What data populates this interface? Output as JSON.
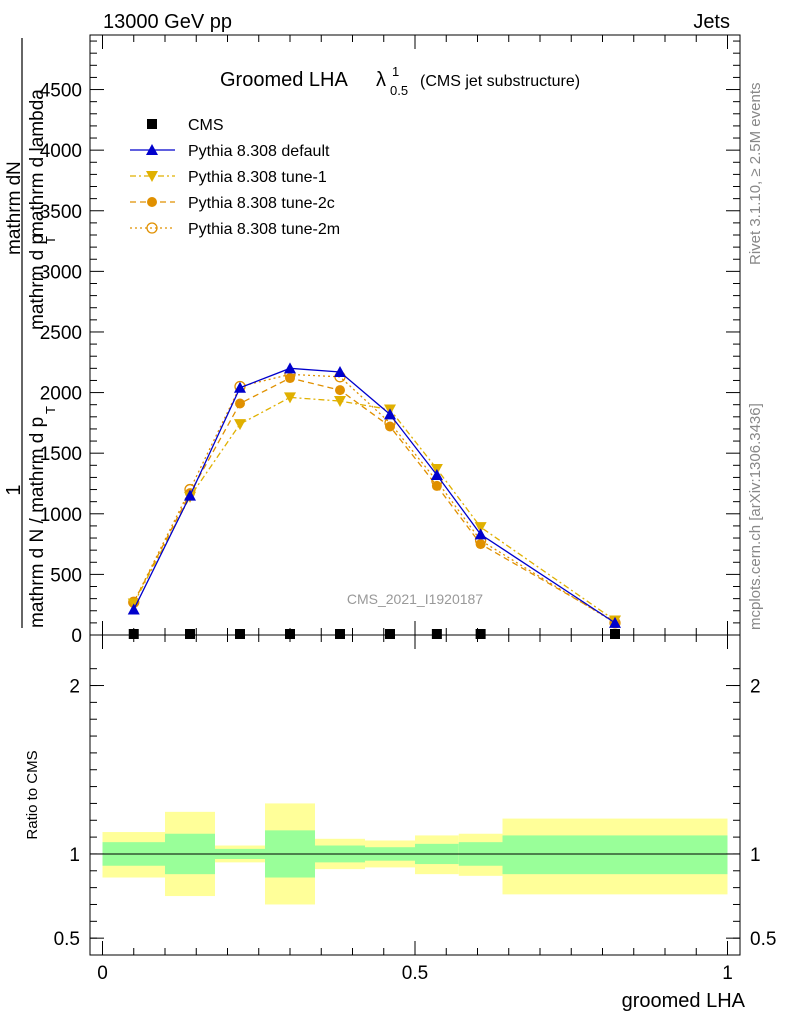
{
  "header": {
    "energy_label": "13000 GeV pp",
    "process_label": "Jets"
  },
  "side_labels": {
    "rivet": "Rivet 3.1.10, ≥ 2.5M events",
    "mcplots": "mcplots.cern.ch [arXiv:1306.3436]"
  },
  "watermark": "CMS_2021_I1920187",
  "chart_data": [
    {
      "type": "line",
      "title_main": "Groomed LHA",
      "title_lambda": "λ",
      "title_sup": "1",
      "title_sub": "0.5",
      "title_suffix": "(CMS jet substructure)",
      "ylabel_numerator": "1",
      "ylabel_denominator": "mathrm d N / mathrm d p",
      "ylabel_numerator_2": "mathrm d",
      "ylabel_numerator_2b": "N",
      "ylabel_denominator_2": "mathrm d p",
      "ylabel_denominator_2b": "T",
      "ylabel_denominator_2c": " mathrm d lambda",
      "ylabel_sub_T": "T",
      "ylim": [
        0,
        4950
      ],
      "yticks": [
        {
          "value": 0,
          "label": "0"
        },
        {
          "value": 500,
          "label": "500"
        },
        {
          "value": 1000,
          "label": "1000"
        },
        {
          "value": 1500,
          "label": "1500"
        },
        {
          "value": 2000,
          "label": "2000"
        },
        {
          "value": 2500,
          "label": "2500"
        },
        {
          "value": 3000,
          "label": "3000"
        },
        {
          "value": 3500,
          "label": "3500"
        },
        {
          "value": 4000,
          "label": "4000"
        },
        {
          "value": 4500,
          "label": "4500"
        }
      ],
      "xlim": [
        -0.02,
        1.02
      ],
      "series": [
        {
          "name": "CMS",
          "marker": "square",
          "color": "#000000",
          "x": [
            0.05,
            0.14,
            0.22,
            0.3,
            0.38,
            0.46,
            0.535,
            0.605,
            0.82
          ],
          "y": [
            0,
            0,
            0,
            0,
            0,
            0,
            0,
            0,
            0
          ]
        },
        {
          "name": "Pythia 8.308 default",
          "marker": "triangle-up",
          "color": "#0000cc",
          "dash": "",
          "x": [
            0.05,
            0.14,
            0.22,
            0.3,
            0.38,
            0.46,
            0.535,
            0.605,
            0.82
          ],
          "y": [
            210,
            1150,
            2040,
            2200,
            2170,
            1820,
            1320,
            830,
            100
          ]
        },
        {
          "name": "Pythia 8.308 tune-1",
          "marker": "triangle-down",
          "color": "#e0b000",
          "dash": "6,3,2,3",
          "x": [
            0.05,
            0.14,
            0.22,
            0.3,
            0.38,
            0.46,
            0.535,
            0.605,
            0.82
          ],
          "y": [
            260,
            1140,
            1740,
            1960,
            1930,
            1860,
            1370,
            890,
            120
          ]
        },
        {
          "name": "Pythia 8.308 tune-2c",
          "marker": "circle",
          "color": "#e09000",
          "dash": "6,4",
          "x": [
            0.05,
            0.14,
            0.22,
            0.3,
            0.38,
            0.46,
            0.535,
            0.605,
            0.82
          ],
          "y": [
            270,
            1170,
            1910,
            2120,
            2020,
            1720,
            1230,
            750,
            110
          ]
        },
        {
          "name": "Pythia 8.308 tune-2m",
          "marker": "circle-open",
          "color": "#e09000",
          "dash": "2,3",
          "x": [
            0.05,
            0.14,
            0.22,
            0.3,
            0.38,
            0.46,
            0.535,
            0.605,
            0.82
          ],
          "y": [
            270,
            1200,
            2050,
            2150,
            2130,
            1750,
            1270,
            780,
            100
          ]
        }
      ],
      "legend": "top-left"
    },
    {
      "type": "area",
      "ylabel": "Ratio to CMS",
      "xlabel": "groomed LHA",
      "ylim": [
        0.4,
        2.3
      ],
      "xlim": [
        -0.02,
        1.02
      ],
      "yticks": [
        {
          "value": 0.5,
          "label": "0.5"
        },
        {
          "value": 1,
          "label": "1"
        },
        {
          "value": 2,
          "label": "2"
        }
      ],
      "xticks": [
        {
          "value": 0,
          "label": "0"
        },
        {
          "value": 0.5,
          "label": "0.5"
        },
        {
          "value": 1,
          "label": "1"
        }
      ],
      "reference_line": 1,
      "bands": [
        {
          "x0": 0.0,
          "x1": 0.1,
          "inner": [
            0.93,
            1.07
          ],
          "outer": [
            0.86,
            1.13
          ]
        },
        {
          "x0": 0.1,
          "x1": 0.18,
          "inner": [
            0.88,
            1.12
          ],
          "outer": [
            0.75,
            1.25
          ]
        },
        {
          "x0": 0.18,
          "x1": 0.26,
          "inner": [
            0.97,
            1.03
          ],
          "outer": [
            0.95,
            1.05
          ]
        },
        {
          "x0": 0.26,
          "x1": 0.34,
          "inner": [
            0.86,
            1.14
          ],
          "outer": [
            0.7,
            1.3
          ]
        },
        {
          "x0": 0.34,
          "x1": 0.42,
          "inner": [
            0.95,
            1.05
          ],
          "outer": [
            0.91,
            1.09
          ]
        },
        {
          "x0": 0.42,
          "x1": 0.5,
          "inner": [
            0.96,
            1.04
          ],
          "outer": [
            0.92,
            1.08
          ]
        },
        {
          "x0": 0.5,
          "x1": 0.57,
          "inner": [
            0.94,
            1.06
          ],
          "outer": [
            0.88,
            1.11
          ]
        },
        {
          "x0": 0.57,
          "x1": 0.64,
          "inner": [
            0.93,
            1.07
          ],
          "outer": [
            0.87,
            1.12
          ]
        },
        {
          "x0": 0.64,
          "x1": 1.0,
          "inner": [
            0.88,
            1.11
          ],
          "outer": [
            0.76,
            1.21
          ]
        }
      ],
      "colors": {
        "inner": "#99ff99",
        "outer": "#ffff99"
      }
    }
  ]
}
